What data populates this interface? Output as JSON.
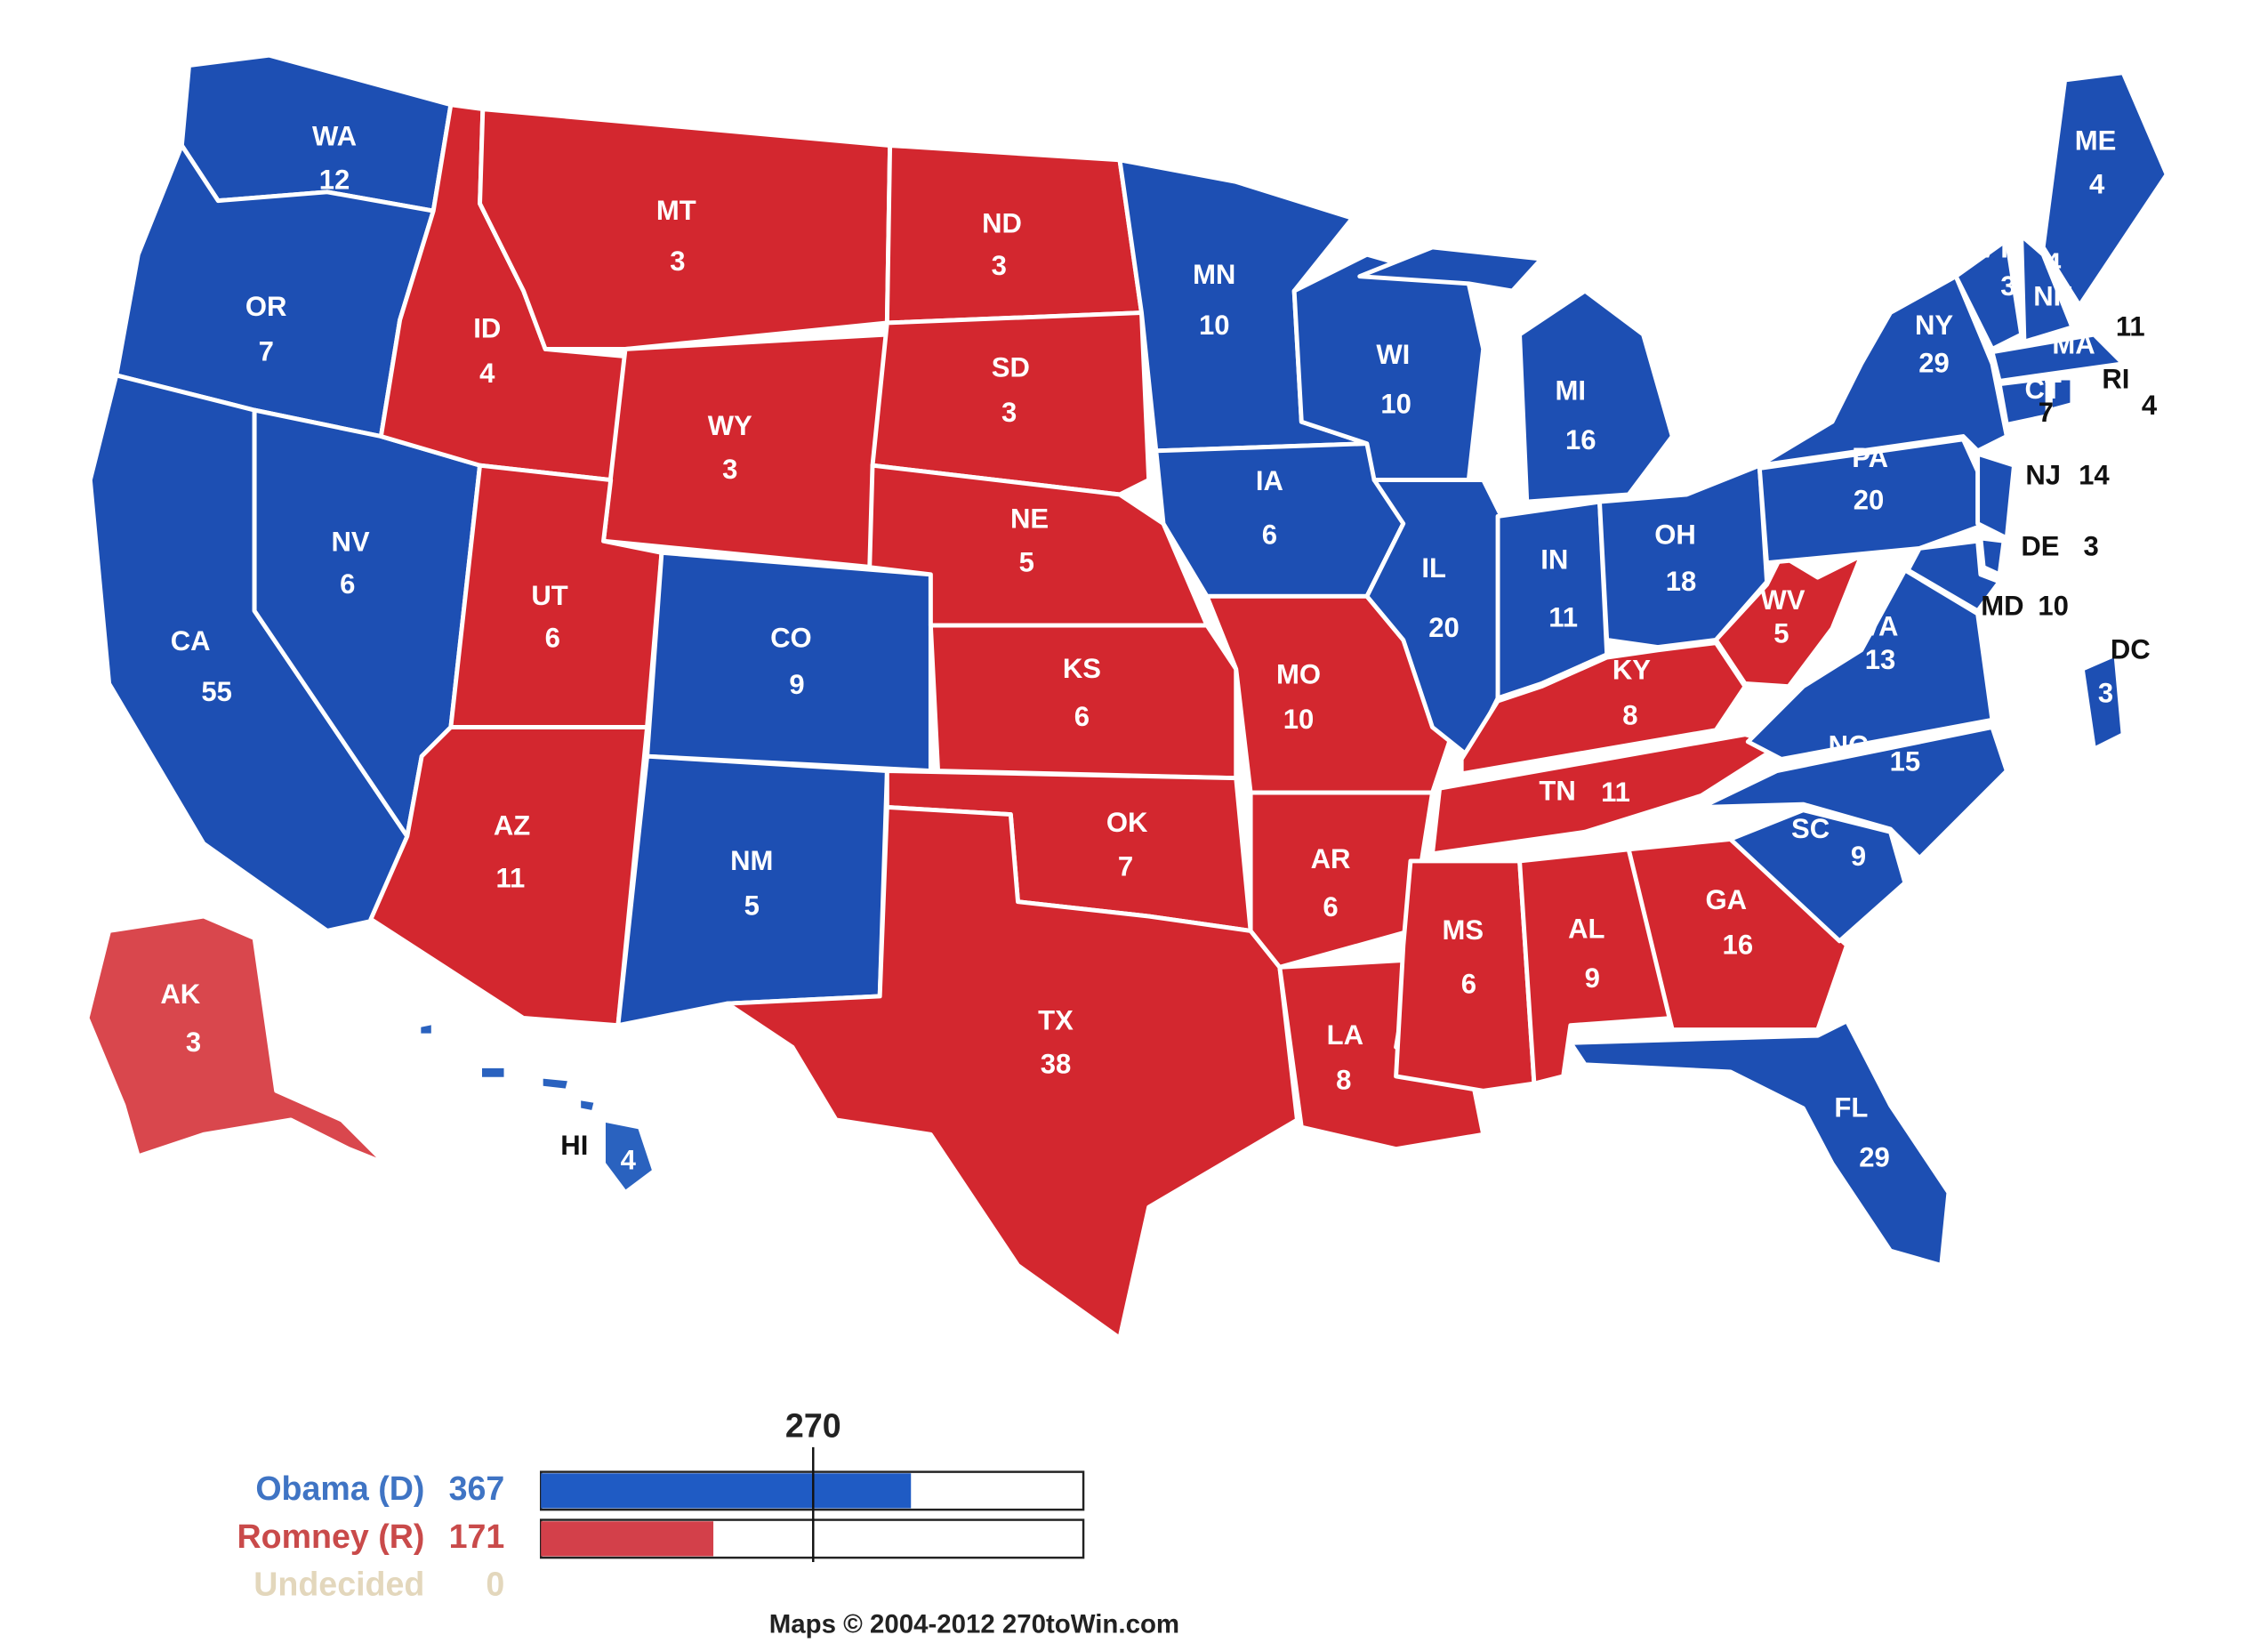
{
  "map": {
    "states": [
      {
        "abbr": "WA",
        "votes": 12,
        "color": "#1d4fb3"
      },
      {
        "abbr": "OR",
        "votes": 7,
        "color": "#1d4fb3"
      },
      {
        "abbr": "CA",
        "votes": 55,
        "color": "#1d4fb3"
      },
      {
        "abbr": "NV",
        "votes": 6,
        "color": "#1d4fb3"
      },
      {
        "abbr": "ID",
        "votes": 4,
        "color": "#d3272f"
      },
      {
        "abbr": "MT",
        "votes": 3,
        "color": "#d3272f"
      },
      {
        "abbr": "WY",
        "votes": 3,
        "color": "#d3272f"
      },
      {
        "abbr": "UT",
        "votes": 6,
        "color": "#d3272f"
      },
      {
        "abbr": "AZ",
        "votes": 11,
        "color": "#d3272f"
      },
      {
        "abbr": "CO",
        "votes": 9,
        "color": "#1d4fb3"
      },
      {
        "abbr": "NM",
        "votes": 5,
        "color": "#1d4fb3"
      },
      {
        "abbr": "ND",
        "votes": 3,
        "color": "#d3272f"
      },
      {
        "abbr": "SD",
        "votes": 3,
        "color": "#d3272f"
      },
      {
        "abbr": "NE",
        "votes": 5,
        "color": "#d3272f"
      },
      {
        "abbr": "KS",
        "votes": 6,
        "color": "#d3272f"
      },
      {
        "abbr": "OK",
        "votes": 7,
        "color": "#d3272f"
      },
      {
        "abbr": "TX",
        "votes": 38,
        "color": "#d3272f"
      },
      {
        "abbr": "MN",
        "votes": 10,
        "color": "#1d4fb3"
      },
      {
        "abbr": "IA",
        "votes": 6,
        "color": "#1d4fb3"
      },
      {
        "abbr": "MO",
        "votes": 10,
        "color": "#d3272f"
      },
      {
        "abbr": "AR",
        "votes": 6,
        "color": "#d3272f"
      },
      {
        "abbr": "LA",
        "votes": 8,
        "color": "#d3272f"
      },
      {
        "abbr": "WI",
        "votes": 10,
        "color": "#1d4fb3"
      },
      {
        "abbr": "IL",
        "votes": 20,
        "color": "#1d4fb3"
      },
      {
        "abbr": "MI",
        "votes": 16,
        "color": "#1d4fb3"
      },
      {
        "abbr": "IN",
        "votes": 11,
        "color": "#1d4fb3"
      },
      {
        "abbr": "OH",
        "votes": 18,
        "color": "#1d4fb3"
      },
      {
        "abbr": "KY",
        "votes": 8,
        "color": "#d3272f"
      },
      {
        "abbr": "TN",
        "votes": 11,
        "color": "#d3272f"
      },
      {
        "abbr": "MS",
        "votes": 6,
        "color": "#d3272f"
      },
      {
        "abbr": "AL",
        "votes": 9,
        "color": "#d3272f"
      },
      {
        "abbr": "GA",
        "votes": 16,
        "color": "#d3272f"
      },
      {
        "abbr": "FL",
        "votes": 29,
        "color": "#1d4fb3"
      },
      {
        "abbr": "SC",
        "votes": 9,
        "color": "#1d4fb3"
      },
      {
        "abbr": "NC",
        "votes": 15,
        "color": "#1d4fb3"
      },
      {
        "abbr": "VA",
        "votes": 13,
        "color": "#1d4fb3"
      },
      {
        "abbr": "WV",
        "votes": 5,
        "color": "#d3272f"
      },
      {
        "abbr": "PA",
        "votes": 20,
        "color": "#1d4fb3"
      },
      {
        "abbr": "NY",
        "votes": 29,
        "color": "#1d4fb3"
      },
      {
        "abbr": "NJ",
        "votes": 14,
        "color": "#1d4fb3"
      },
      {
        "abbr": "DE",
        "votes": 3,
        "color": "#1d4fb3"
      },
      {
        "abbr": "MD",
        "votes": 10,
        "color": "#1d4fb3"
      },
      {
        "abbr": "VT",
        "votes": 3,
        "color": "#1d4fb3"
      },
      {
        "abbr": "NH",
        "votes": 4,
        "color": "#1d4fb3"
      },
      {
        "abbr": "ME",
        "votes": 4,
        "color": "#1d4fb3"
      },
      {
        "abbr": "MA",
        "votes": 11,
        "color": "#1d4fb3"
      },
      {
        "abbr": "CT",
        "votes": 7,
        "color": "#1d4fb3"
      },
      {
        "abbr": "RI",
        "votes": 4,
        "color": "#1d4fb3"
      },
      {
        "abbr": "DC",
        "votes": 3,
        "color": "#1d4fb3"
      },
      {
        "abbr": "AK",
        "votes": 3,
        "color": "#d9474d"
      },
      {
        "abbr": "HI",
        "votes": 4,
        "color": "#2a62bf"
      }
    ]
  },
  "tally": {
    "marker": 270,
    "xlim": [
      0,
      538
    ],
    "candidates": [
      {
        "name": "Obama (D)",
        "votes": 367,
        "color": "#3f74c4",
        "bar_color": "#1f5bc4"
      },
      {
        "name": "Romney (R)",
        "votes": 171,
        "color": "#c94a4a",
        "bar_color": "#d3404a"
      },
      {
        "name": "Undecided",
        "votes": 0,
        "color": "#e3d7bc"
      }
    ]
  },
  "credit": "Maps © 2004-2012 270toWin.com"
}
